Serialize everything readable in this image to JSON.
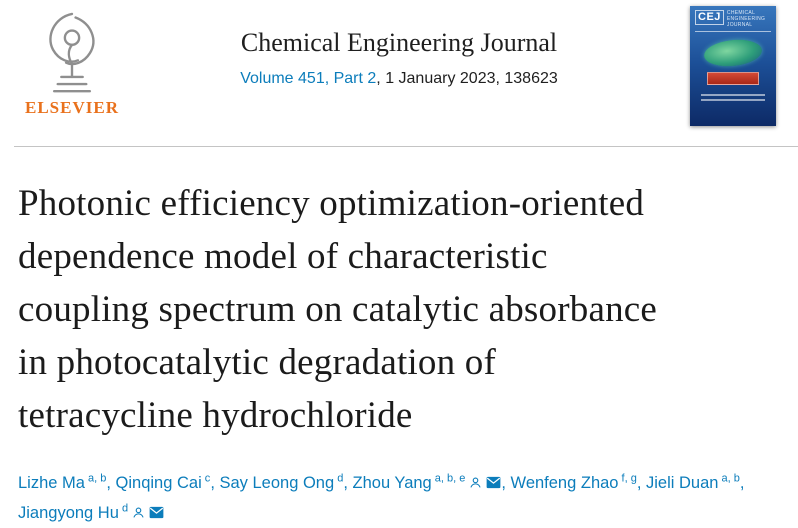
{
  "colors": {
    "elsevier_orange": "#e9711c",
    "link_blue": "#0c7dbb",
    "text_dark": "#1f1f1f",
    "divider_gray": "#c4c4c4",
    "cover_blue_top": "#3877bd",
    "cover_blue_bottom": "#0d2a66"
  },
  "header": {
    "publisher_wordmark": "ELSEVIER",
    "journal_name": "Chemical Engineering Journal",
    "volume_link": "Volume 451, Part 2",
    "issue_suffix": ", 1 January 2023, 138623",
    "cover": {
      "logo": "CEJ",
      "journal_name": "Chemical Engineering Journal"
    }
  },
  "article": {
    "title": "Photonic efficiency optimization-oriented dependence model of characteristic coupling spectrum on catalytic absorbance in photocatalytic degradation of tetracycline hydrochloride",
    "title_lines": [
      "Photonic efficiency optimization-oriented",
      "dependence model of characteristic",
      "coupling spectrum on catalytic absorbance",
      "in photocatalytic degradation of",
      "tetracycline hydrochloride"
    ],
    "author_separator": ", ",
    "authors": [
      {
        "name": "Lizhe Ma",
        "affiliations": "a, b",
        "profile_icon": false,
        "email_icon": false
      },
      {
        "name": "Qinqing Cai",
        "affiliations": "c",
        "profile_icon": false,
        "email_icon": false
      },
      {
        "name": "Say Leong Ong",
        "affiliations": "d",
        "profile_icon": false,
        "email_icon": false
      },
      {
        "name": "Zhou Yang",
        "affiliations": "a, b, e",
        "profile_icon": true,
        "email_icon": true
      },
      {
        "name": "Wenfeng Zhao",
        "affiliations": "f, g",
        "profile_icon": false,
        "email_icon": false
      },
      {
        "name": "Jieli Duan",
        "affiliations": "a, b",
        "profile_icon": false,
        "email_icon": false
      },
      {
        "name": "Jiangyong Hu",
        "affiliations": "d",
        "profile_icon": true,
        "email_icon": true
      }
    ]
  }
}
